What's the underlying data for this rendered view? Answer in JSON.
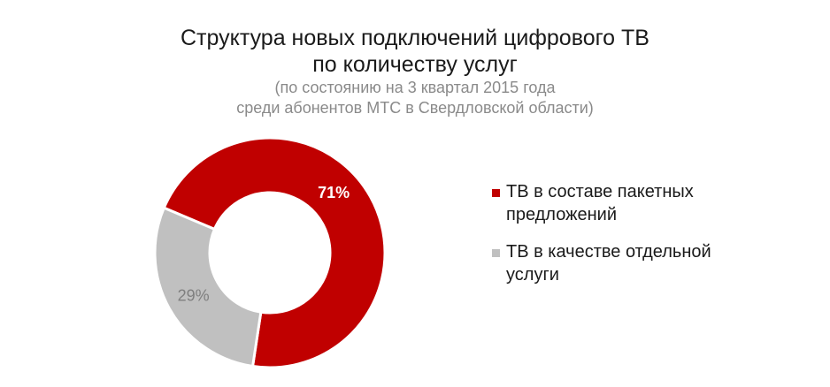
{
  "header": {
    "title_lines": [
      "Структура новых подключений цифрового ТВ",
      "по количеству услуг"
    ],
    "subtitle_lines": [
      "(по состоянию на 3 квартал 2015 года",
      "среди абонентов МТС в Свердловской области)"
    ]
  },
  "chart_data": {
    "type": "pie",
    "title": "Структура новых подключений цифрового ТВ по количеству услуг",
    "subtitle": "(по состоянию на 3 квартал 2015 года среди абонентов МТС в Свердловской области)",
    "donut": true,
    "categories": [
      "ТВ в составе пакетных предложений",
      "ТВ в качестве отдельной услуги"
    ],
    "values": [
      71,
      29
    ],
    "labels": [
      "71%",
      "29%"
    ],
    "colors": [
      "#c00000",
      "#c0c0c0"
    ],
    "label_colors": [
      "#ffffff",
      "#7f7f7f"
    ],
    "legend_position": "right"
  }
}
